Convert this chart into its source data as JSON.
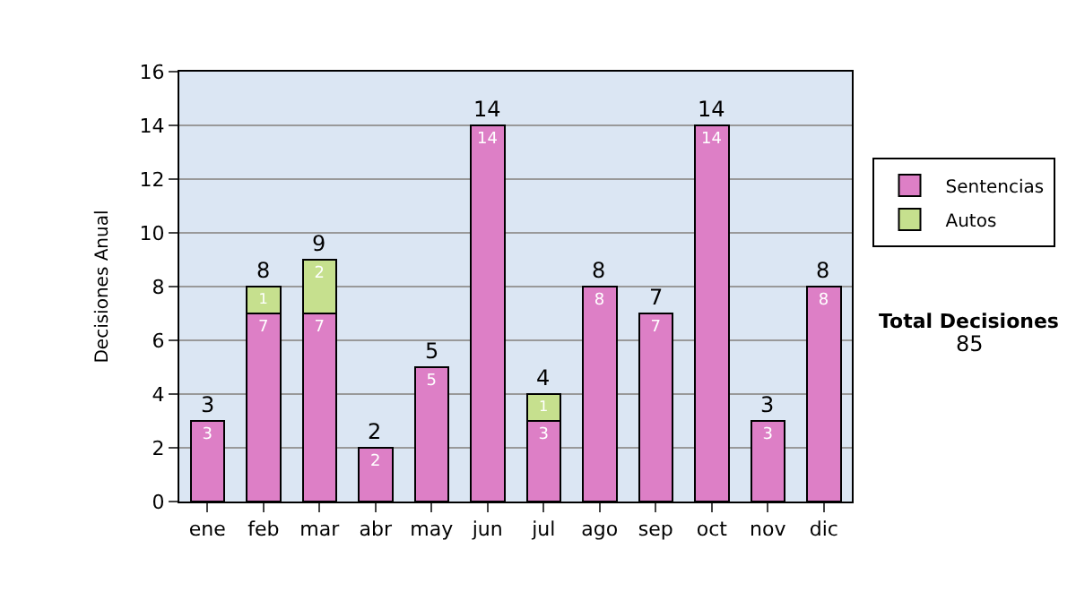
{
  "chart_data": {
    "type": "bar",
    "stacked": true,
    "ylabel": "Decisiones Anual",
    "categories": [
      "ene",
      "feb",
      "mar",
      "abr",
      "may",
      "jun",
      "jul",
      "ago",
      "sep",
      "oct",
      "nov",
      "dic"
    ],
    "series": [
      {
        "name": "Sentencias",
        "color": "#dd7fc6",
        "values": [
          3,
          7,
          7,
          2,
          5,
          14,
          3,
          8,
          7,
          14,
          3,
          8
        ]
      },
      {
        "name": "Autos",
        "color": "#c6e08e",
        "values": [
          null,
          1,
          2,
          null,
          null,
          null,
          1,
          null,
          null,
          null,
          null,
          null
        ]
      }
    ],
    "totals": [
      "3",
      "8",
      "9",
      "2",
      "5",
      "14",
      "4",
      "8",
      "7",
      "14",
      "3",
      "8"
    ],
    "data_labels": true,
    "ylim": [
      0,
      16
    ],
    "yticks": [
      0,
      2,
      4,
      6,
      8,
      10,
      12,
      14,
      16
    ],
    "grid": "y",
    "legend": "right",
    "annotations": [
      "Total Decisiones",
      "85"
    ]
  }
}
